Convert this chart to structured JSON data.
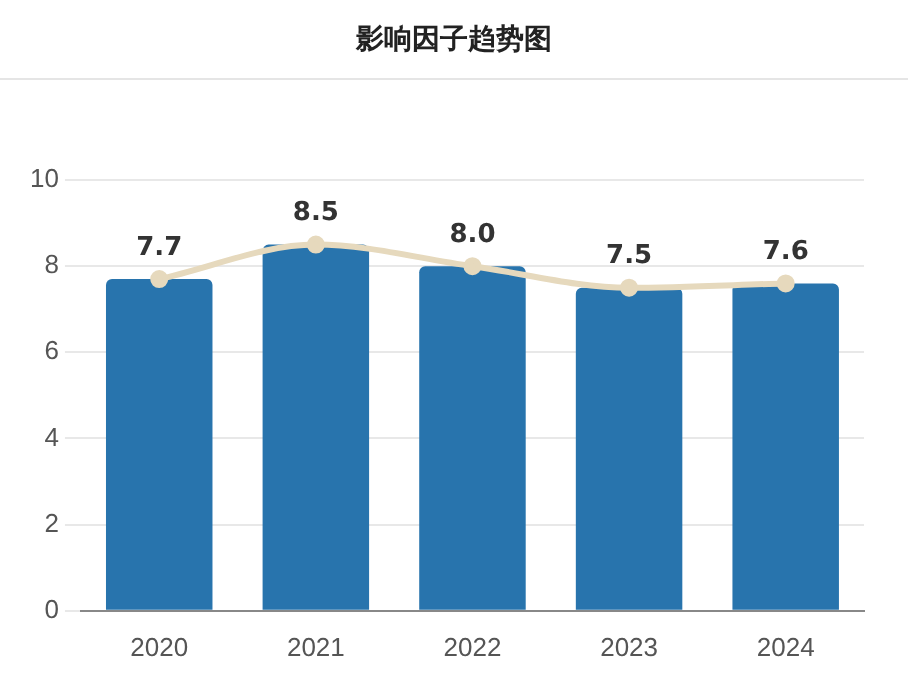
{
  "chart_data": {
    "type": "bar",
    "title": "影响因子趋势图",
    "categories": [
      "2020",
      "2021",
      "2022",
      "2023",
      "2024"
    ],
    "series": [
      {
        "color": "#2874ad",
        "values": [
          7.7,
          8.5,
          8.0,
          7.5,
          7.6
        ],
        "value_labels": [
          "7.7",
          "8.5",
          "8.0",
          "7.5",
          "7.6"
        ]
      },
      {
        "type": "line",
        "color": "#e6d9bd",
        "values": [
          7.7,
          8.5,
          8.0,
          7.5,
          7.6
        ],
        "marker": "circle"
      }
    ],
    "ylim": [
      0,
      10
    ],
    "yticks": [
      0,
      2,
      4,
      6,
      8,
      10
    ],
    "grid": "y",
    "legend": false
  }
}
